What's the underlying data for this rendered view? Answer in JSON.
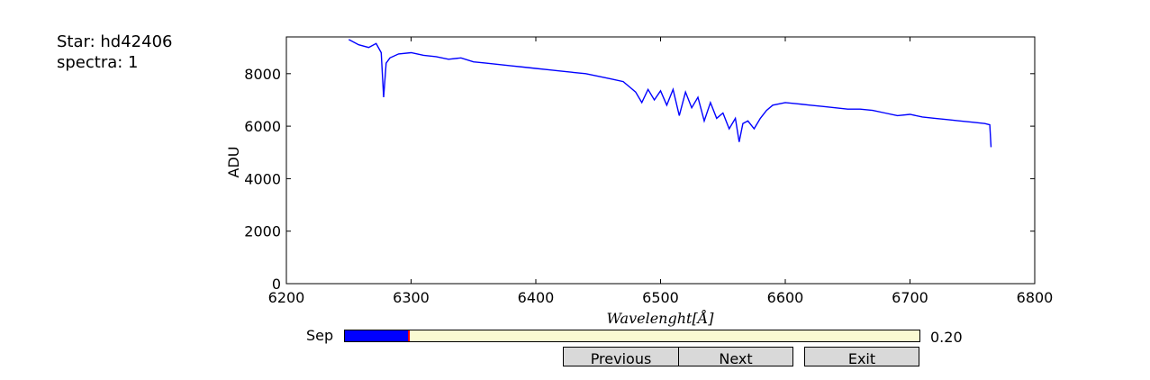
{
  "info": {
    "star_label": "Star: hd42406",
    "spectra_label": "spectra: 1"
  },
  "slider": {
    "label": "Sep",
    "value": 0.2,
    "value_text": "0.20",
    "min": 0,
    "max": 1.8,
    "color": "#0000ff",
    "marker_color": "#ff0000",
    "track_color": "#fafad2"
  },
  "buttons": {
    "previous": "Previous",
    "next": "Next",
    "exit": "Exit"
  },
  "chart_data": {
    "type": "line",
    "title": "",
    "xlabel": "Wavelenght[Å]",
    "ylabel": "ADU",
    "xlim": [
      6200,
      6800
    ],
    "ylim": [
      0,
      9400
    ],
    "xticks": [
      6200,
      6300,
      6400,
      6500,
      6600,
      6700,
      6800
    ],
    "yticks": [
      0,
      2000,
      4000,
      6000,
      8000
    ],
    "grid": false,
    "series": [
      {
        "color": "#0000ff",
        "x": [
          6250,
          6258,
          6266,
          6272,
          6276,
          6278,
          6280,
          6283,
          6290,
          6300,
          6310,
          6320,
          6330,
          6340,
          6350,
          6360,
          6370,
          6380,
          6390,
          6400,
          6410,
          6420,
          6430,
          6440,
          6450,
          6460,
          6470,
          6475,
          6480,
          6485,
          6490,
          6495,
          6500,
          6505,
          6510,
          6515,
          6520,
          6525,
          6530,
          6535,
          6540,
          6545,
          6550,
          6555,
          6560,
          6563,
          6566,
          6570,
          6575,
          6580,
          6585,
          6590,
          6600,
          6610,
          6620,
          6630,
          6640,
          6650,
          6660,
          6670,
          6680,
          6690,
          6700,
          6710,
          6720,
          6730,
          6740,
          6750,
          6760,
          6764,
          6765
        ],
        "y": [
          9300,
          9100,
          9000,
          9150,
          8800,
          7100,
          8400,
          8600,
          8750,
          8800,
          8700,
          8650,
          8550,
          8600,
          8450,
          8400,
          8350,
          8300,
          8250,
          8200,
          8150,
          8100,
          8050,
          8000,
          7900,
          7800,
          7700,
          7500,
          7300,
          6900,
          7400,
          7000,
          7350,
          6800,
          7400,
          6400,
          7300,
          6700,
          7100,
          6200,
          6900,
          6300,
          6500,
          5900,
          6300,
          5400,
          6100,
          6200,
          5900,
          6300,
          6600,
          6800,
          6900,
          6850,
          6800,
          6750,
          6700,
          6650,
          6650,
          6600,
          6500,
          6400,
          6450,
          6350,
          6300,
          6250,
          6200,
          6150,
          6100,
          6050,
          5200
        ]
      }
    ]
  }
}
